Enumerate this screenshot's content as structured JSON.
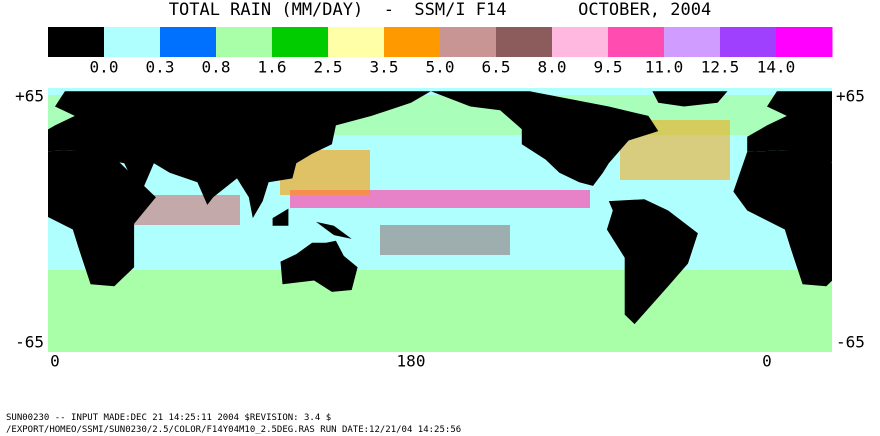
{
  "title": "TOTAL RAIN (MM/DAY)  -  SSM/I F14       OCTOBER, 2004",
  "colorbar": {
    "colors": [
      "#000000",
      "#b0ffff",
      "#0070ff",
      "#a8ffa8",
      "#00cc00",
      "#ffffa8",
      "#ff9900",
      "#c89494",
      "#8c5c5c",
      "#ffb8e0",
      "#ff4cb0",
      "#d09cff",
      "#a040ff",
      "#ff00ff"
    ],
    "labels": [
      "0.0",
      "0.3",
      "0.8",
      "1.6",
      "2.5",
      "3.5",
      "5.0",
      "6.5",
      "8.0",
      "9.5",
      "11.0",
      "12.5",
      "14.0"
    ]
  },
  "axes": {
    "left_top": "+65",
    "left_bottom": "-65",
    "right_top": "+65",
    "right_bottom": "-65",
    "bottom": [
      "0",
      "180",
      "0"
    ]
  },
  "footer": [
    "SUN00230  --  INPUT MADE:DEC 21 14:25:11 2004 $REVISION: 3.4 $",
    "/EXPORT/HOMEO/SSMI/SUN0230/2.5/COLOR/F14Y04M10_2.5DEG.RAS  RUN DATE:12/21/04 14:25:56"
  ]
}
